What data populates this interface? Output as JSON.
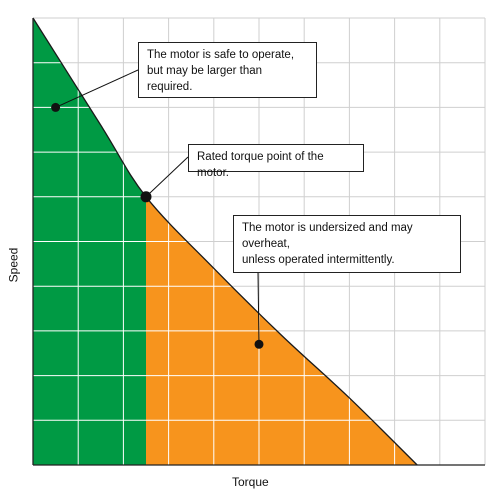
{
  "chart_data": {
    "type": "area",
    "xlabel": "Torque",
    "ylabel": "Speed",
    "xlim": [
      0,
      10
    ],
    "ylim": [
      0,
      10
    ],
    "grid": true,
    "curve": {
      "x": [
        0,
        1.5,
        2.5,
        4,
        5.5,
        7,
        8.5
      ],
      "y": [
        10,
        7.6,
        6.0,
        4.4,
        2.9,
        1.5,
        0
      ]
    },
    "rated_point": {
      "x": 2.5,
      "y": 6.0
    },
    "regions": [
      {
        "label": "safe",
        "color": "#009a44",
        "x_range": [
          0,
          2.5
        ]
      },
      {
        "label": "overheat",
        "color": "#f7941d",
        "x_range": [
          2.5,
          8.5
        ]
      }
    ],
    "annotations": [
      {
        "id": "safe",
        "text": "The motor is safe to operate,\nbut may be larger than required.",
        "marker": {
          "x": 0.5,
          "y": 8.0
        }
      },
      {
        "id": "rated",
        "text": "Rated torque point of the motor.",
        "marker": {
          "x": 2.5,
          "y": 6.0
        }
      },
      {
        "id": "over",
        "text": "The motor is undersized and may overheat,\nunless operated intermittently.",
        "marker": {
          "x": 5.0,
          "y": 2.7
        }
      }
    ]
  },
  "colors": {
    "safe_fill": "#009a44",
    "over_fill": "#f7941d",
    "grid": "#cfcfcf",
    "grid_on_fill": "#ffffff",
    "axis": "#222222"
  }
}
